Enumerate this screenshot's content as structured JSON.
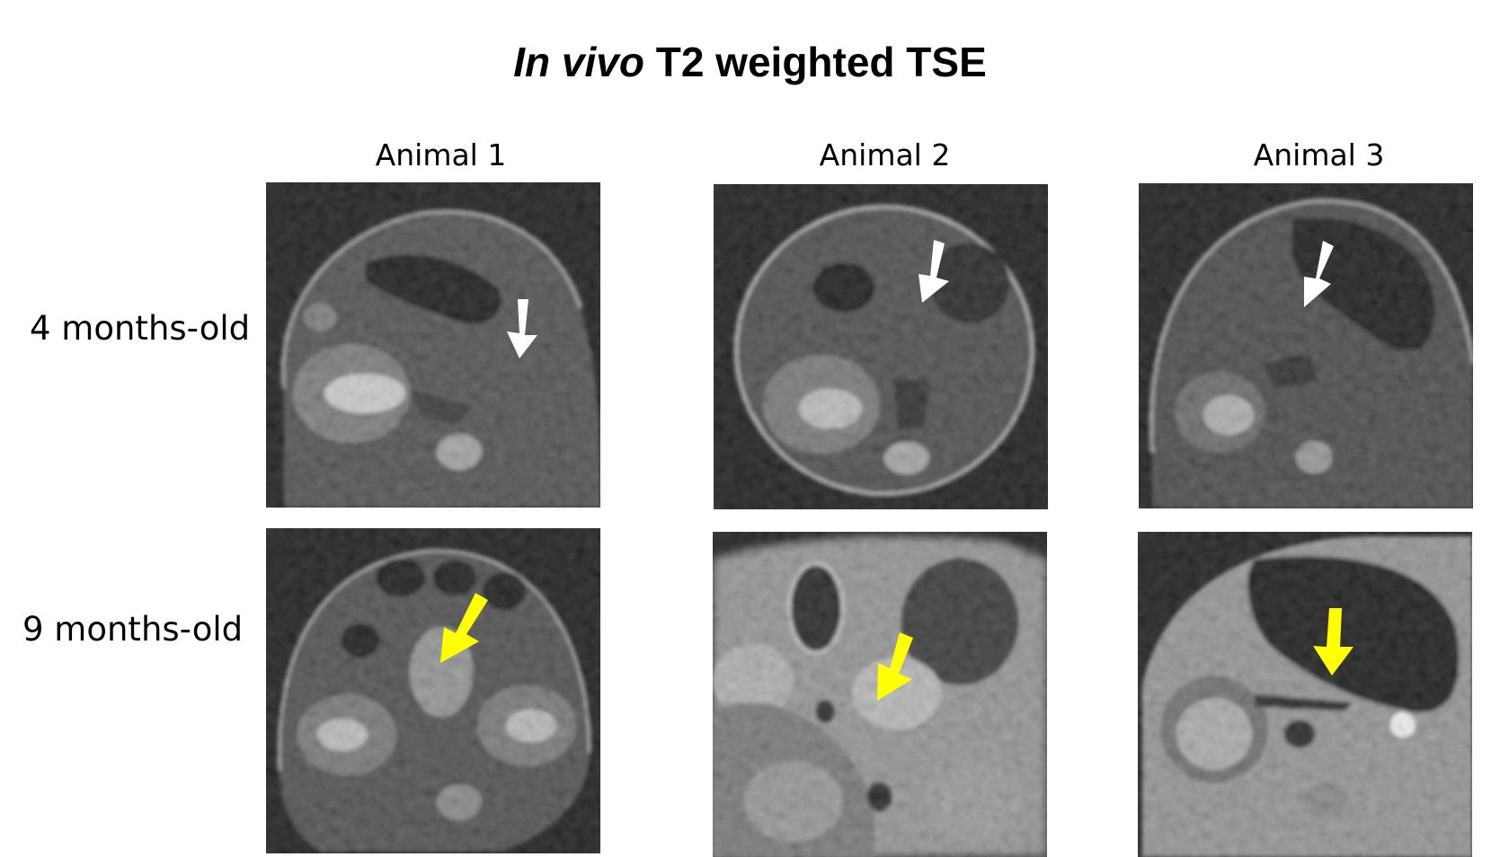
{
  "title": {
    "italic": "In vivo",
    "rest": " T2 weighted TSE"
  },
  "columns": [
    "Animal 1",
    "Animal 2",
    "Animal 3"
  ],
  "rows": [
    "4 months-old",
    "9 months-old"
  ],
  "colors": {
    "arrow_4mo": "#ffffff",
    "arrow_9mo": "#ffff00",
    "background": "#ffffff",
    "image_bg": "#000000"
  }
}
